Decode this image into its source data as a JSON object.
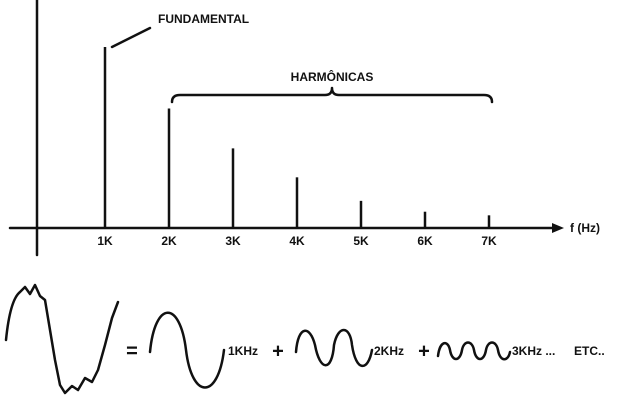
{
  "chart_data": {
    "type": "stem",
    "categories": [
      "1K",
      "2K",
      "3K",
      "4K",
      "5K",
      "6K",
      "7K"
    ],
    "values": [
      100,
      66,
      44,
      28,
      15,
      9,
      7
    ],
    "ylim": [
      0,
      100
    ],
    "xlabel": "f (Hz)",
    "annotations": [
      "FUNDAMENTAL",
      "HARMÔNICAS"
    ],
    "color": "#111111",
    "equation": [
      "=",
      "1KHz",
      "+",
      "2KHz",
      "+",
      "3KHz ...",
      "ETC.."
    ]
  }
}
